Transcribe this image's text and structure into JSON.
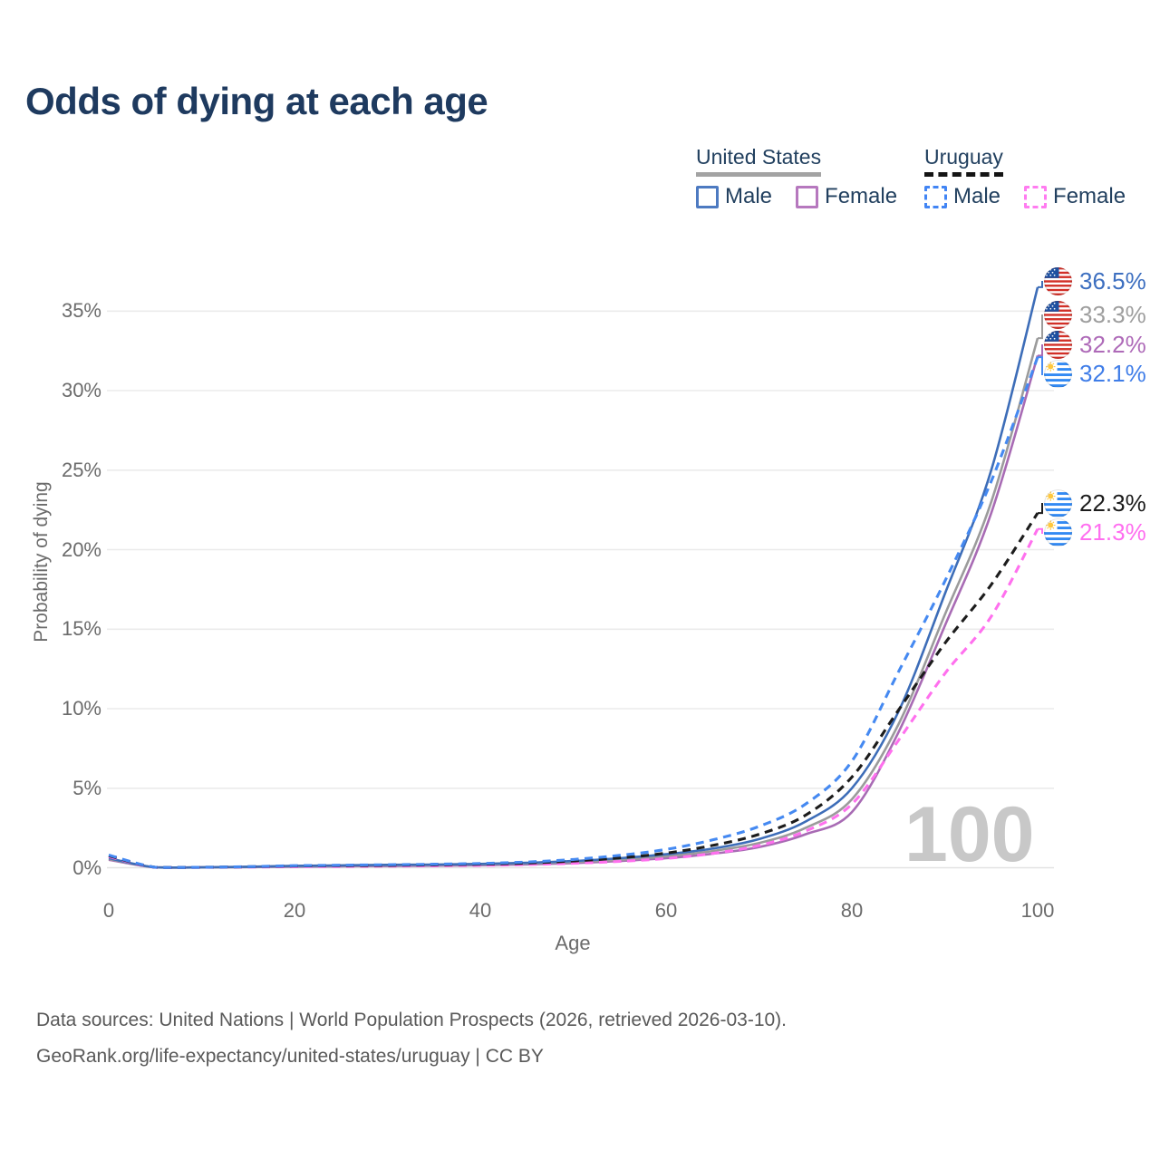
{
  "title": "Odds of dying at each age",
  "watermark": "100",
  "legend": {
    "groups": [
      {
        "label": "United States",
        "style": "solid",
        "underline_color": "#a3a3a3",
        "items": [
          {
            "label": "Male",
            "color": "#4d7ac1"
          },
          {
            "label": "Female",
            "color": "#b678be"
          }
        ]
      },
      {
        "label": "Uruguay",
        "style": "dashed",
        "underline_color": "#141414",
        "items": [
          {
            "label": "Male",
            "color": "#4285f4"
          },
          {
            "label": "Female",
            "color": "#ff7cf0"
          }
        ]
      }
    ]
  },
  "chart_data": {
    "type": "line",
    "xlabel": "Age",
    "ylabel": "Probability of dying",
    "x_ticks": [
      0,
      20,
      40,
      60,
      80,
      100
    ],
    "y_ticks": [
      "0%",
      "5%",
      "10%",
      "15%",
      "20%",
      "25%",
      "30%",
      "35%"
    ],
    "x_range": [
      0,
      100
    ],
    "y_range_percent": [
      0,
      36.5
    ],
    "grid": "horizontal-only",
    "legend_position": "top-right",
    "ages": [
      0,
      5,
      10,
      15,
      20,
      25,
      30,
      35,
      40,
      45,
      50,
      55,
      60,
      65,
      70,
      75,
      80,
      85,
      90,
      95,
      100
    ],
    "series": [
      {
        "name": "United States Male",
        "flag": "us",
        "dash": false,
        "color": "#3d6db8",
        "label_color": "#3d6fc0",
        "end_label": "36.5%",
        "end_value": 36.5,
        "values": [
          0.6,
          0.02,
          0.02,
          0.06,
          0.12,
          0.15,
          0.18,
          0.2,
          0.24,
          0.31,
          0.42,
          0.6,
          0.85,
          1.2,
          1.8,
          2.9,
          5.0,
          9.8,
          17.2,
          25.0,
          36.5
        ]
      },
      {
        "name": "United States Both sexes",
        "flag": "us",
        "dash": false,
        "color": "#9b9b9b",
        "label_color": "#9e9e9e",
        "end_label": "33.3%",
        "end_value": 33.3,
        "values": [
          0.55,
          0.02,
          0.02,
          0.05,
          0.1,
          0.13,
          0.16,
          0.18,
          0.21,
          0.27,
          0.36,
          0.5,
          0.72,
          1.05,
          1.55,
          2.5,
          4.3,
          9.0,
          15.9,
          23.0,
          33.3
        ]
      },
      {
        "name": "United States Female",
        "flag": "us",
        "dash": false,
        "color": "#a86bb4",
        "label_color": "#ae6ab8",
        "end_label": "32.2%",
        "end_value": 32.2,
        "values": [
          0.5,
          0.02,
          0.02,
          0.04,
          0.07,
          0.09,
          0.11,
          0.13,
          0.16,
          0.21,
          0.29,
          0.42,
          0.6,
          0.88,
          1.3,
          2.1,
          3.5,
          8.5,
          15.2,
          22.3,
          32.2
        ]
      },
      {
        "name": "Uruguay Male",
        "flag": "uy",
        "dash": true,
        "color": "#4589f1",
        "label_color": "#3f7de8",
        "end_label": "32.1%",
        "end_value": 32.1,
        "values": [
          0.8,
          0.03,
          0.03,
          0.07,
          0.13,
          0.16,
          0.19,
          0.22,
          0.27,
          0.36,
          0.52,
          0.78,
          1.15,
          1.75,
          2.6,
          4.0,
          6.7,
          12.3,
          18.0,
          24.3,
          32.1
        ]
      },
      {
        "name": "Uruguay Both sexes",
        "flag": "uy",
        "dash": true,
        "color": "#1c1c1c",
        "label_color": "#1c1c1c",
        "end_label": "22.3%",
        "end_value": 22.3,
        "values": [
          0.75,
          0.03,
          0.03,
          0.06,
          0.11,
          0.13,
          0.15,
          0.18,
          0.22,
          0.29,
          0.42,
          0.62,
          0.92,
          1.4,
          2.1,
          3.3,
          5.7,
          9.9,
          14.1,
          17.8,
          22.3
        ]
      },
      {
        "name": "Uruguay Female",
        "flag": "uy",
        "dash": true,
        "color": "#ff70ee",
        "label_color": "#ff6ff0",
        "end_label": "21.3%",
        "end_value": 21.3,
        "values": [
          0.7,
          0.02,
          0.02,
          0.04,
          0.07,
          0.08,
          0.1,
          0.12,
          0.15,
          0.2,
          0.28,
          0.4,
          0.58,
          0.9,
          1.4,
          2.3,
          4.0,
          8.0,
          12.2,
          15.8,
          21.3
        ]
      }
    ]
  },
  "footer": {
    "line1": "Data sources: United Nations | World Population Prospects (2026, retrieved 2026-03-10).",
    "line2": "GeoRank.org/life-expectancy/united-states/uruguay | CC BY"
  }
}
